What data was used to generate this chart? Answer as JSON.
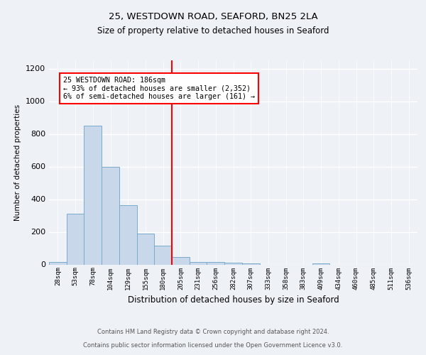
{
  "title1": "25, WESTDOWN ROAD, SEAFORD, BN25 2LA",
  "title2": "Size of property relative to detached houses in Seaford",
  "xlabel": "Distribution of detached houses by size in Seaford",
  "ylabel": "Number of detached properties",
  "bin_labels": [
    "28sqm",
    "53sqm",
    "78sqm",
    "104sqm",
    "129sqm",
    "155sqm",
    "180sqm",
    "205sqm",
    "231sqm",
    "256sqm",
    "282sqm",
    "307sqm",
    "333sqm",
    "358sqm",
    "383sqm",
    "409sqm",
    "434sqm",
    "460sqm",
    "485sqm",
    "511sqm",
    "536sqm"
  ],
  "bar_values": [
    15,
    310,
    850,
    600,
    365,
    190,
    115,
    45,
    15,
    15,
    10,
    5,
    0,
    0,
    0,
    5,
    0,
    0,
    0,
    0,
    0
  ],
  "bar_color": "#c8d8ea",
  "bar_edge_color": "#7aabcc",
  "vline_color": "red",
  "vline_x_index": 6,
  "annotation_text": "25 WESTDOWN ROAD: 186sqm\n← 93% of detached houses are smaller (2,352)\n6% of semi-detached houses are larger (161) →",
  "annotation_box_color": "white",
  "annotation_box_edge": "red",
  "ylim": [
    0,
    1250
  ],
  "yticks": [
    0,
    200,
    400,
    600,
    800,
    1000,
    1200
  ],
  "footer1": "Contains HM Land Registry data © Crown copyright and database right 2024.",
  "footer2": "Contains public sector information licensed under the Open Government Licence v3.0.",
  "bg_color": "#eef2f7"
}
